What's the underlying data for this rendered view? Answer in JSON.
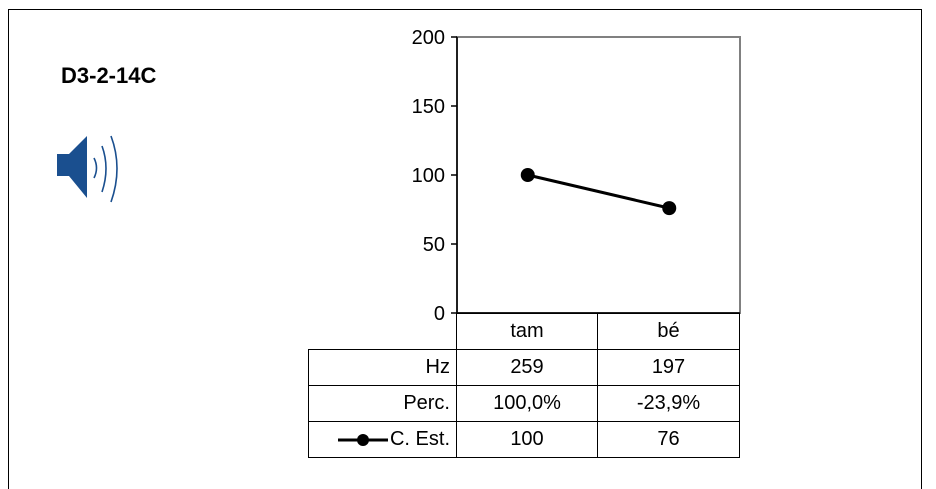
{
  "title": "D3-2-14C",
  "icons": {
    "audio": "speaker-icon"
  },
  "colors": {
    "line": "#000000",
    "speaker": "#1a4f8f"
  },
  "chart_data": {
    "type": "line",
    "categories": [
      "tam",
      "bé"
    ],
    "series": [
      {
        "name": "C. Est.",
        "values": [
          100,
          76
        ]
      }
    ],
    "ylim": [
      0,
      200
    ],
    "yticks": [
      0,
      50,
      100,
      150,
      200
    ],
    "grid": false,
    "table": {
      "rows": [
        {
          "label": "Hz",
          "values": [
            "259",
            "197"
          ]
        },
        {
          "label": "Perc.",
          "values": [
            "100,0%",
            "-23,9%"
          ]
        },
        {
          "label": "C. Est.",
          "values": [
            "100",
            "76"
          ]
        }
      ]
    }
  }
}
